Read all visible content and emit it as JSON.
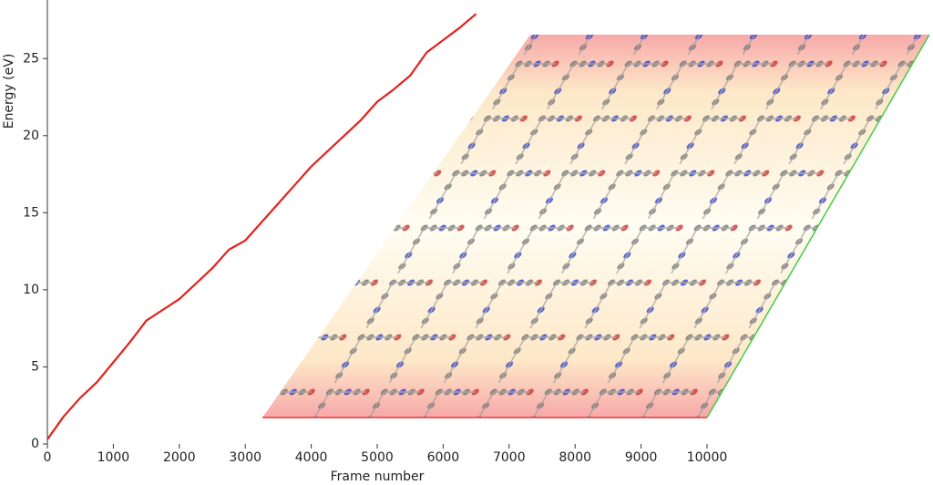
{
  "chart_data": {
    "type": "line",
    "x_label": "Frame number",
    "y_label": "Energy (eV)",
    "x": [
      0,
      250,
      500,
      750,
      1000,
      1250,
      1500,
      1750,
      2000,
      2250,
      2500,
      2750,
      3000,
      3250,
      3500,
      3750,
      4000,
      4250,
      4500,
      4750,
      5000,
      5250,
      5500,
      5750,
      6000,
      6250,
      6500
    ],
    "series": [
      {
        "color": "#e3211c",
        "values": [
          0.3,
          1.8,
          3.0,
          4.0,
          5.3,
          6.6,
          8.0,
          8.7,
          9.4,
          10.4,
          11.4,
          12.6,
          13.2,
          14.4,
          15.6,
          16.8,
          18.0,
          19.0,
          20.0,
          21.0,
          22.2,
          23.0,
          23.9,
          25.4,
          26.2,
          27.0,
          27.9
        ]
      }
    ],
    "xlim": [
      0,
      10000
    ],
    "ylim": [
      0,
      28.8
    ],
    "xticks": [
      0,
      1000,
      2000,
      3000,
      4000,
      5000,
      6000,
      7000,
      8000,
      9000,
      10000
    ],
    "yticks": [
      0,
      5,
      10,
      15,
      20,
      25
    ],
    "grid": false
  }
}
